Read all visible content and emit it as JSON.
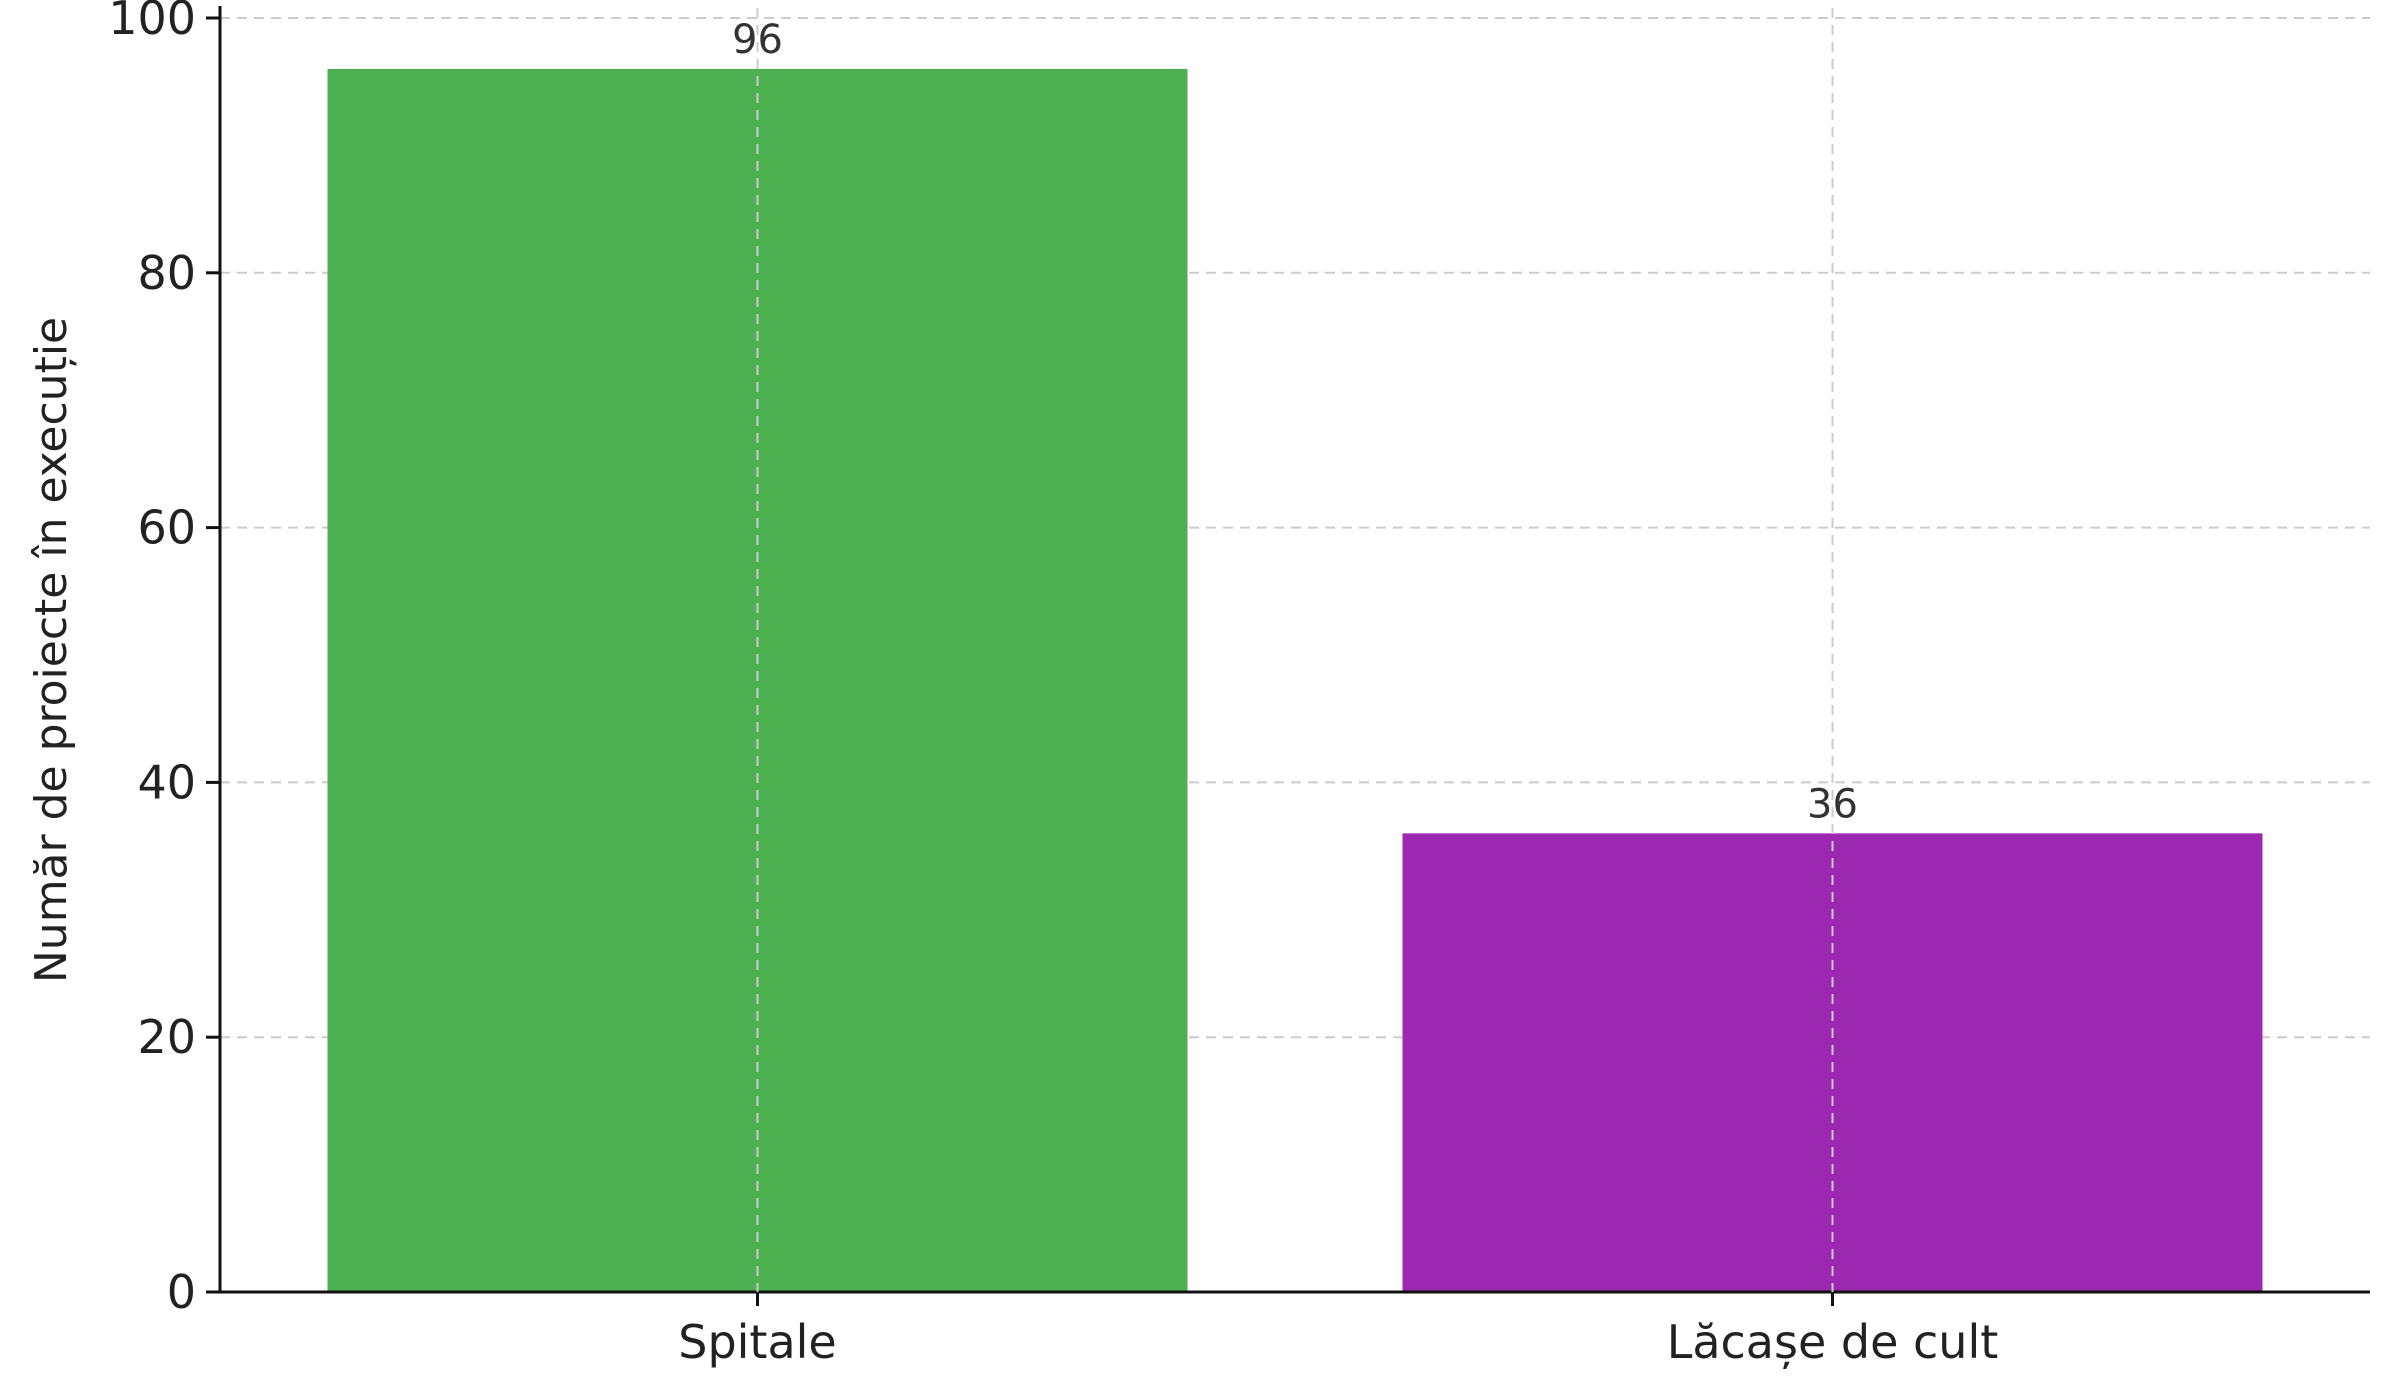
{
  "chart_data": {
    "type": "bar",
    "categories": [
      "Spitale",
      "Lăcașe de cult"
    ],
    "values": [
      96,
      36
    ],
    "colors": [
      "#4caf50",
      "#9c27b0"
    ],
    "title": "",
    "xlabel": "",
    "ylabel": "Număr de proiecte în execuție",
    "ylim": [
      0,
      100
    ],
    "yticks": [
      0,
      20,
      40,
      60,
      80,
      100
    ],
    "grid": true,
    "data_labels": true
  }
}
